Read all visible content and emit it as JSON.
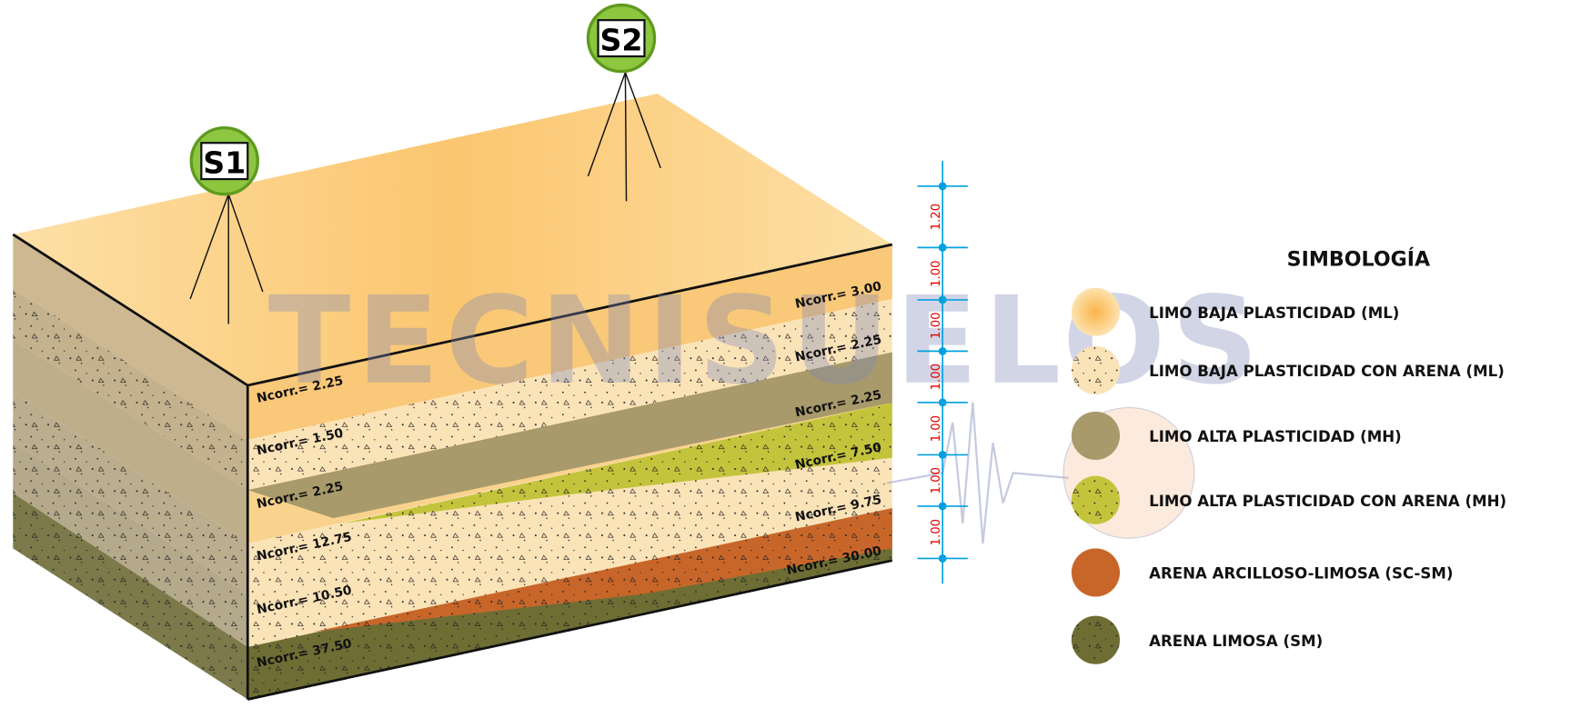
{
  "watermark": "TECNISUELOS",
  "boreholes": [
    "S1",
    "S2"
  ],
  "s1_ncorr": [
    "Ncorr.= 2.25",
    "Ncorr.= 1.50",
    "Ncorr.= 2.25",
    "Ncorr.= 12.75",
    "Ncorr.= 10.50",
    "Ncorr.= 37.50"
  ],
  "s2_ncorr": [
    "Ncorr.= 3.00",
    "Ncorr.= 2.25",
    "Ncorr.= 2.25",
    "Ncorr.= 7.50",
    "Ncorr.= 9.75",
    "Ncorr.= 30.00"
  ],
  "scale_labels": [
    "1.20",
    "1.00",
    "1.00",
    "1.00",
    "1.00",
    "1.00",
    "1.00"
  ],
  "legend": {
    "title": "SIMBOLOGÍA",
    "items": [
      {
        "label": "LIMO BAJA PLASTICIDAD (ML)",
        "color": "#f7c778"
      },
      {
        "label": "LIMO BAJA PLASTICIDAD CON ARENA (ML)",
        "color": "#fbe3b8"
      },
      {
        "label": "LIMO ALTA PLASTICIDAD (MH)",
        "color": "#a89a6a"
      },
      {
        "label": "LIMO ALTA PLASTICIDAD CON ARENA (MH)",
        "color": "#c4c43c"
      },
      {
        "label": "ARENA ARCILLOSO-LIMOSA (SC-SM)",
        "color": "#c8662a"
      },
      {
        "label": "ARENA LIMOSA (SM)",
        "color": "#6e6e34"
      }
    ]
  }
}
